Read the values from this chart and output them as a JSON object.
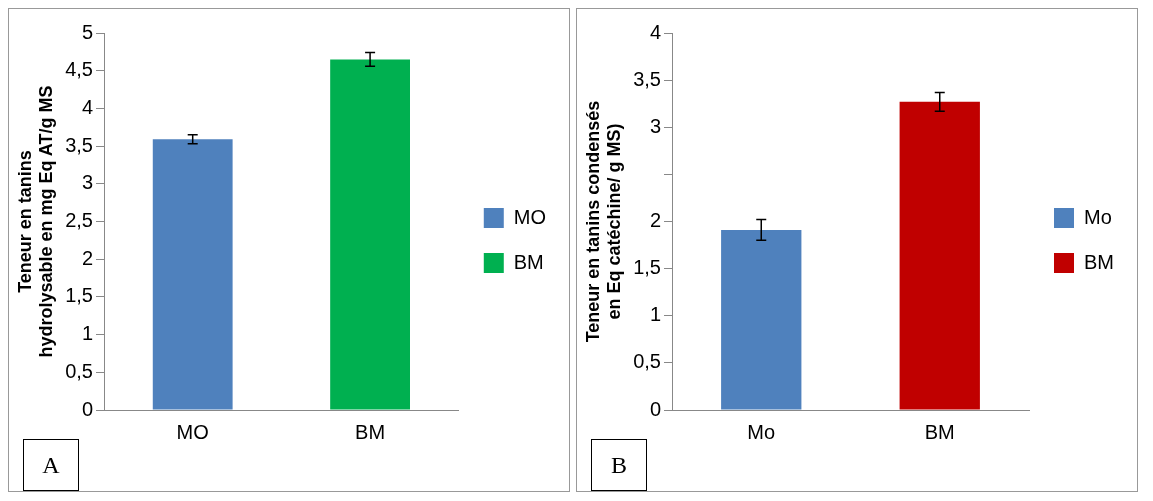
{
  "chart_data": [
    {
      "type": "bar",
      "ylabel": "Teneur en tanins hydrolysable en mg Eq AT/g MS",
      "categories": [
        "MO",
        "BM"
      ],
      "series": [
        {
          "name": "MO",
          "color": "#4f81bd",
          "values": [
            3.59,
            null
          ],
          "errors": [
            0.06,
            null
          ]
        },
        {
          "name": "BM",
          "color": "#00b050",
          "values": [
            null,
            4.65
          ],
          "errors": [
            null,
            0.09
          ]
        }
      ],
      "ylim": [
        0,
        5
      ],
      "yticks": [
        {
          "value": 0,
          "label": "0"
        },
        {
          "value": 0.5,
          "label": "0,5"
        },
        {
          "value": 1,
          "label": "1"
        },
        {
          "value": 1.5,
          "label": "1,5"
        },
        {
          "value": 2,
          "label": "2"
        },
        {
          "value": 2.5,
          "label": "2,5"
        },
        {
          "value": 3,
          "label": "3"
        },
        {
          "value": 3.5,
          "label": "3,5"
        },
        {
          "value": 4,
          "label": "4"
        },
        {
          "value": 4.5,
          "label": "4,5"
        },
        {
          "value": 5,
          "label": "5"
        }
      ],
      "legend": "right",
      "annotations": [
        "A"
      ]
    },
    {
      "type": "bar",
      "ylabel": "Teneur en tanins condensés en Eq catéchine/ g MS)",
      "categories": [
        "Mo",
        "BM"
      ],
      "series": [
        {
          "name": "Mo",
          "color": "#4f81bd",
          "values": [
            1.91,
            null
          ],
          "errors": [
            0.11,
            null
          ]
        },
        {
          "name": "BM",
          "color": "#c00000",
          "values": [
            null,
            3.27
          ],
          "errors": [
            null,
            0.1
          ]
        }
      ],
      "ylim": [
        0,
        4
      ],
      "yticks": [
        {
          "value": 0,
          "label": "0"
        },
        {
          "value": 0.5,
          "label": "0,5"
        },
        {
          "value": 1,
          "label": "1"
        },
        {
          "value": 1.5,
          "label": "1,5"
        },
        {
          "value": 2,
          "label": "2"
        },
        {
          "value": 2.5,
          "label": null
        },
        {
          "value": 3,
          "label": "3"
        },
        {
          "value": 3.5,
          "label": "3,5"
        },
        {
          "value": 4,
          "label": "4"
        }
      ],
      "legend": "right",
      "annotations": [
        "B"
      ]
    }
  ]
}
